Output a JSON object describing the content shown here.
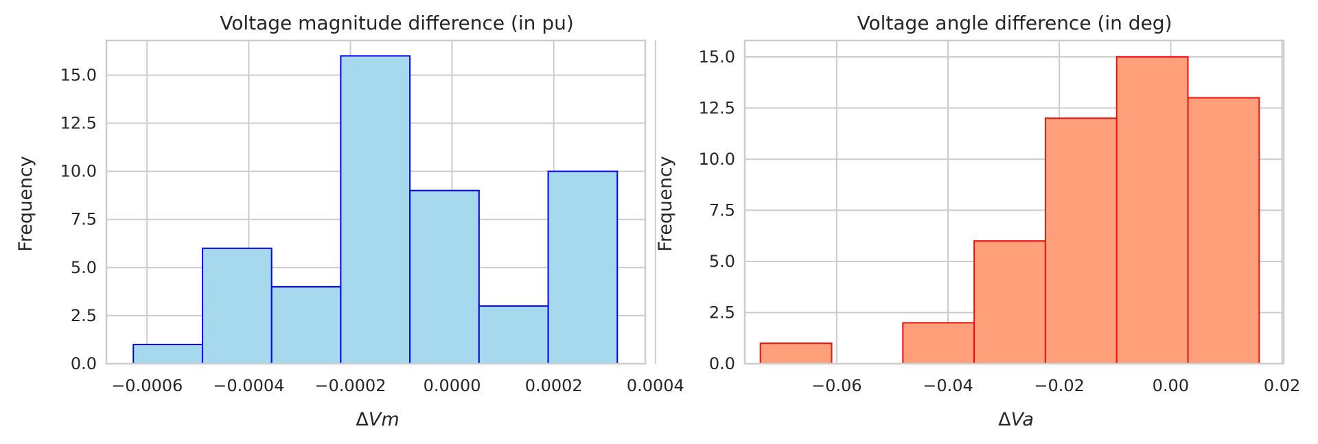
{
  "chart_data": [
    {
      "type": "bar",
      "title": "Voltage magnitude difference (in pu)",
      "xlabel_symbol": "Δ",
      "xlabel_var": "Vm",
      "ylabel": "Frequency",
      "bin_edges": [
        -0.000627,
        -0.000491,
        -0.000355,
        -0.000219,
        -8.3e-05,
        5.3e-05,
        0.000189,
        0.000325
      ],
      "values": [
        1,
        6,
        4,
        16,
        9,
        3,
        10
      ],
      "xlim": [
        -0.00068,
        0.00038
      ],
      "ylim": [
        0,
        16.8
      ],
      "xticks": [
        -0.0006,
        -0.0004,
        -0.0002,
        0.0,
        0.0002,
        0.0004
      ],
      "xtick_labels": [
        "−0.0006",
        "−0.0004",
        "−0.0002",
        "0.0000",
        "0.0002",
        "0.0004"
      ],
      "yticks": [
        0,
        2.5,
        5,
        7.5,
        10,
        12.5,
        15
      ],
      "ytick_labels": [
        "0.0",
        "2.5",
        "5.0",
        "7.5",
        "10.0",
        "12.5",
        "15.0"
      ],
      "grid": true,
      "fill_color": "#a6d8ee",
      "edge_color": "#0000ff"
    },
    {
      "type": "bar",
      "title": "Voltage angle difference (in deg)",
      "xlabel_symbol": "Δ",
      "xlabel_var": "Va",
      "ylabel": "Frequency",
      "bin_edges": [
        -0.0737,
        -0.0609,
        -0.0481,
        -0.0353,
        -0.0225,
        -0.0097,
        0.0031,
        0.0159
      ],
      "values": [
        1,
        0,
        2,
        6,
        12,
        15,
        13
      ],
      "xlim": [
        -0.0765,
        0.0203
      ],
      "ylim": [
        0,
        15.8
      ],
      "xticks": [
        -0.06,
        -0.04,
        -0.02,
        0.0,
        0.02
      ],
      "xtick_labels": [
        "−0.06",
        "−0.04",
        "−0.02",
        "0.00",
        "0.02"
      ],
      "yticks": [
        0,
        2.5,
        5,
        7.5,
        10,
        12.5,
        15
      ],
      "ytick_labels": [
        "0.0",
        "2.5",
        "5.0",
        "7.5",
        "10.0",
        "12.5",
        "15.0"
      ],
      "grid": true,
      "fill_color": "#ffa07a",
      "edge_color": "#ee1111"
    }
  ]
}
